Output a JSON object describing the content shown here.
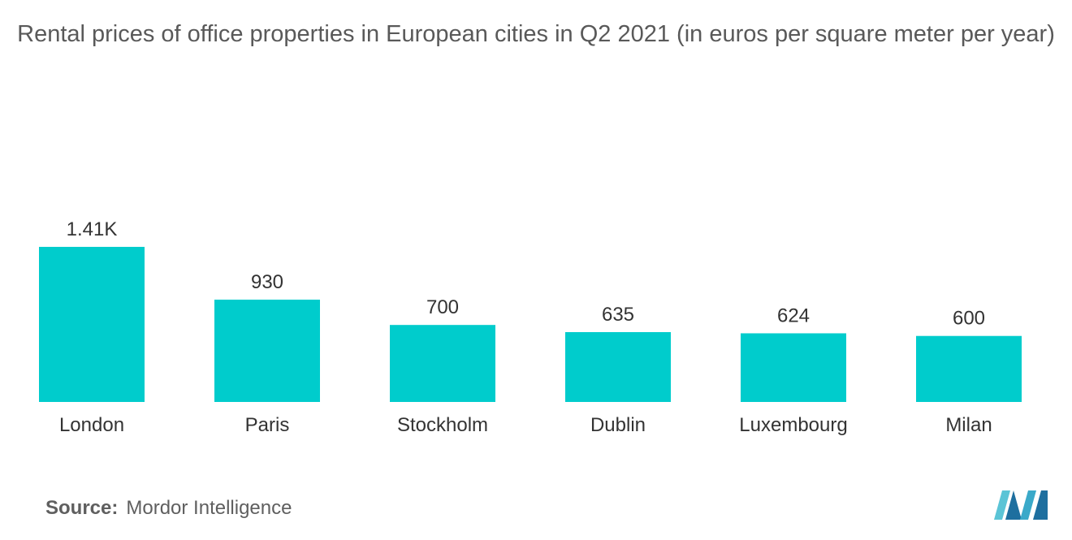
{
  "title": "Rental prices of office properties in European cities in Q2 2021 (in euros per square meter per year)",
  "source": {
    "prefix": "Source:",
    "name": "Mordor Intelligence"
  },
  "logo": {
    "icon": "mordor-intelligence-logo-icon",
    "colors": [
      "#5bc4d6",
      "#1e6f9f",
      "#3aa9c9"
    ]
  },
  "chart_data": {
    "type": "bar",
    "categories": [
      "London",
      "Paris",
      "Stockholm",
      "Dublin",
      "Luxembourg",
      "Milan"
    ],
    "values": [
      1410,
      930,
      700,
      635,
      624,
      600
    ],
    "value_labels": [
      "1.41K",
      "930",
      "700",
      "635",
      "624",
      "600"
    ],
    "title": "Rental prices of office properties in European cities in Q2 2021 (in euros per square meter per year)",
    "xlabel": "",
    "ylabel": "",
    "ylim": [
      0,
      1410
    ],
    "grid": false,
    "legend": "none",
    "bar_color": "#00cccc"
  }
}
